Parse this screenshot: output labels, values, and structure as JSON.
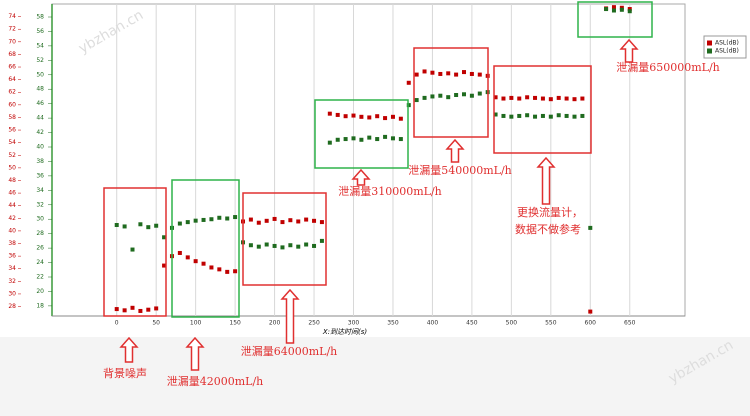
{
  "chart_data": {
    "type": "scatter",
    "x_label": "X:到达时间(s)",
    "x": [
      0,
      10,
      20,
      30,
      40,
      50,
      60,
      70,
      80,
      90,
      100,
      110,
      120,
      130,
      140,
      150,
      160,
      170,
      180,
      190,
      200,
      210,
      220,
      230,
      240,
      250,
      260,
      270,
      280,
      290,
      300,
      310,
      320,
      330,
      340,
      350,
      360,
      370,
      380,
      390,
      400,
      410,
      420,
      430,
      440,
      450,
      460,
      470,
      480,
      490,
      500,
      510,
      520,
      530,
      540,
      550,
      560,
      570,
      580,
      590,
      600,
      620,
      630,
      640,
      650
    ],
    "xlim": [
      -82,
      720
    ],
    "xticks": [
      0,
      50,
      100,
      150,
      200,
      250,
      300,
      350,
      400,
      450,
      500,
      550,
      600,
      650
    ],
    "ylim": [
      26.5,
      76
    ],
    "yticks": [
      28,
      30,
      32,
      34,
      36,
      38,
      40,
      42,
      44,
      46,
      48,
      50,
      52,
      54,
      56,
      58,
      60,
      62,
      64,
      66,
      68,
      70,
      72,
      74
    ],
    "y2lim": [
      16.6,
      59.8
    ],
    "y2ticks": [
      18,
      20,
      22,
      24,
      26,
      28,
      30,
      32,
      34,
      36,
      38,
      40,
      42,
      44,
      46,
      48,
      50,
      52,
      54,
      56,
      58
    ],
    "grid": true,
    "legend": "right",
    "series": [
      {
        "name": "ASL(dB)",
        "color": "#c00000",
        "values": [
          27.6,
          27.4,
          27.8,
          27.3,
          27.5,
          27.7,
          34.5,
          36,
          36.5,
          35.8,
          35.2,
          34.8,
          34.2,
          33.9,
          33.5,
          33.6,
          41.5,
          41.8,
          41.3,
          41.6,
          41.9,
          41.4,
          41.7,
          41.5,
          41.8,
          41.6,
          41.4,
          58.6,
          58.4,
          58.2,
          58.3,
          58.1,
          58.0,
          58.2,
          57.9,
          58.1,
          57.8,
          63.5,
          64.8,
          65.3,
          65.1,
          64.9,
          65.0,
          64.8,
          65.2,
          64.9,
          64.8,
          64.6,
          61.2,
          61.0,
          61.1,
          61.0,
          61.2,
          61.1,
          61.0,
          60.9,
          61.1,
          61.0,
          60.9,
          61.0,
          27.2,
          75.3,
          75.5,
          75.4,
          75.2
        ]
      },
      {
        "name": "ASL(dB)",
        "color": "#1f6b1f",
        "axis": "y2",
        "values": [
          29.2,
          29.0,
          25.8,
          29.3,
          28.9,
          29.1,
          27.5,
          28.8,
          29.4,
          29.6,
          29.8,
          29.9,
          30.0,
          30.2,
          30.1,
          30.3,
          26.8,
          26.4,
          26.2,
          26.5,
          26.3,
          26.1,
          26.4,
          26.2,
          26.5,
          26.3,
          27.0,
          40.6,
          41.0,
          41.1,
          41.2,
          41.0,
          41.3,
          41.1,
          41.4,
          41.2,
          41.1,
          45.8,
          46.5,
          46.8,
          47.0,
          47.1,
          46.9,
          47.2,
          47.3,
          47.1,
          47.4,
          47.6,
          44.5,
          44.3,
          44.2,
          44.3,
          44.4,
          44.2,
          44.3,
          44.2,
          44.4,
          44.3,
          44.2,
          44.3,
          28.8,
          59.1,
          58.9,
          59.0,
          58.8
        ]
      }
    ],
    "annotations": [
      "背景噪声",
      "泄漏量42000mL/h",
      "泄漏量64000mL/h",
      "泄漏量310000mL/h",
      "泄漏量540000mL/h",
      "更换流量计，",
      "数据不做参考",
      "泄漏量650000mL/h"
    ],
    "watermark": "ybzhan.cn"
  }
}
